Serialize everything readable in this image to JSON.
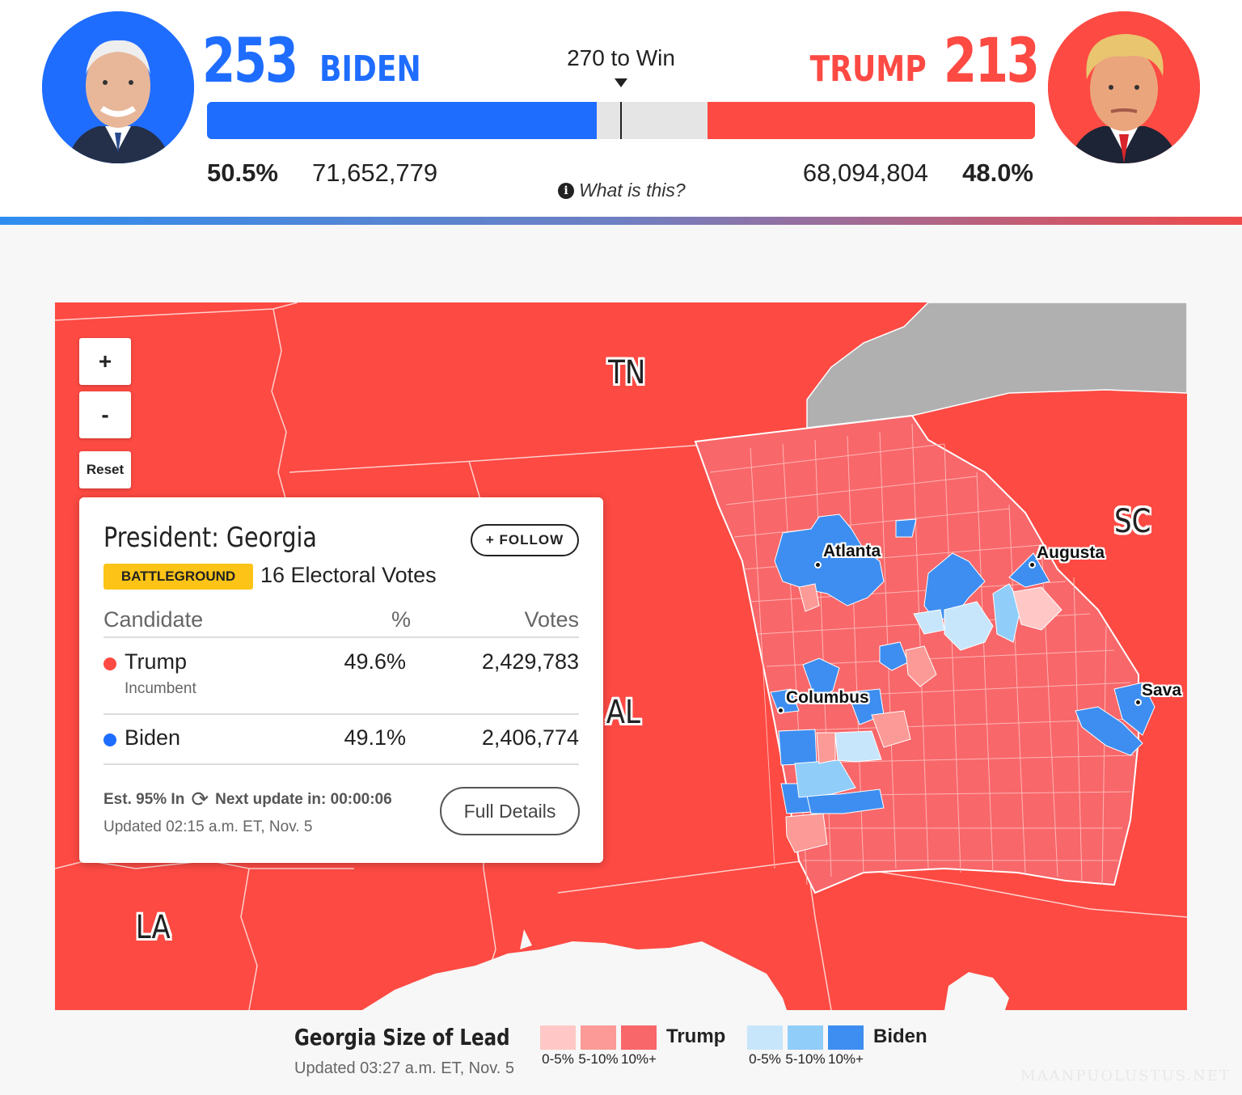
{
  "header": {
    "biden": {
      "ev": "253",
      "name": "BIDEN",
      "pct": "50.5%",
      "votes": "71,652,779",
      "color": "#1f6dff"
    },
    "trump": {
      "ev": "213",
      "name": "TRUMP",
      "pct": "48.0%",
      "votes": "68,094,804",
      "color": "#fd4a43"
    },
    "win_label": "270 to Win",
    "what_is_this": "What is this?",
    "ev_total": 538,
    "ev_biden_value": 253,
    "ev_trump_value": 213
  },
  "map": {
    "state_labels": {
      "tn": "TN",
      "sc": "SC",
      "al": "AL",
      "la": "LA"
    },
    "cities": {
      "atlanta": "Atlanta",
      "augusta": "Augusta",
      "columbus": "Columbus",
      "savannah": "Sava"
    },
    "controls": {
      "zoom_in": "+",
      "zoom_out": "-",
      "reset": "Reset"
    },
    "colors": {
      "state_fill": "#fd4a43",
      "no_data": "#b0b0b0",
      "trump_0_5": "#ffc8c6",
      "trump_5_10": "#fb9a96",
      "trump_10_plus": "#f8676a",
      "biden_0_5": "#c8e6fb",
      "biden_5_10": "#90cdf9",
      "biden_10_plus": "#3d8ef0"
    }
  },
  "card": {
    "title": "President: Georgia",
    "follow_label": "+ FOLLOW",
    "badge": "BATTLEGROUND",
    "electoral_votes": "16 Electoral Votes",
    "columns": {
      "candidate": "Candidate",
      "pct": "%",
      "votes": "Votes"
    },
    "rows": [
      {
        "name": "Trump",
        "sub": "Incumbent",
        "pct": "49.6%",
        "votes": "2,429,783",
        "color": "#fd4a43"
      },
      {
        "name": "Biden",
        "sub": "",
        "pct": "49.1%",
        "votes": "2,406,774",
        "color": "#1f6dff"
      }
    ],
    "est_in": "Est. 95% In",
    "next_update": "Next update in: 00:00:06",
    "updated": "Updated 02:15 a.m. ET, Nov. 5",
    "full_details": "Full Details"
  },
  "legend": {
    "title": "Georgia Size of Lead",
    "updated": "Updated 03:27 a.m. ET, Nov. 5",
    "trump_label": "Trump",
    "biden_label": "Biden",
    "bins": [
      "0-5%",
      "5-10%",
      "10%+"
    ]
  },
  "watermark": "MAANPUOLUSTUS.NET"
}
